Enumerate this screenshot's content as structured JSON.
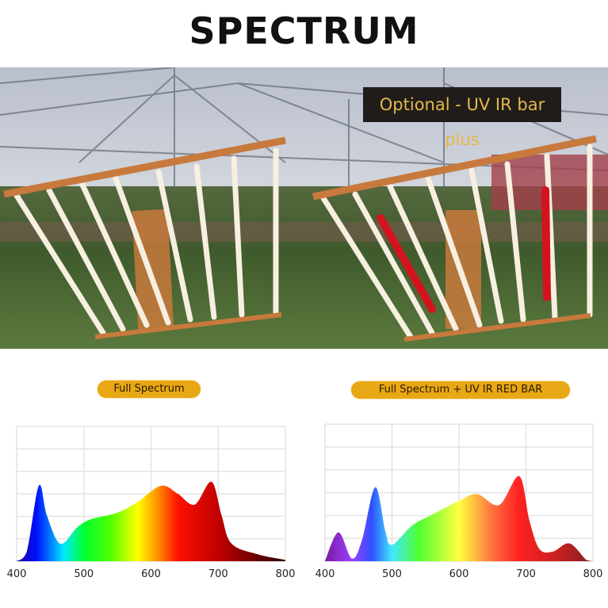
{
  "title": "SPECTRUM",
  "photo": {
    "callout": "Optional - UV IR bar plus",
    "accent_color": "#c8793c",
    "red_bar_color": "#d3141e"
  },
  "chart_data": [
    {
      "type": "area",
      "title": "Full Spectrum",
      "xlabel": "",
      "ylabel": "",
      "xlim": [
        400,
        800
      ],
      "ylim": [
        0,
        1
      ],
      "x_ticks": [
        "400",
        "500",
        "600",
        "700",
        "800"
      ],
      "grid": true,
      "fill": "wavelength-color gradient",
      "x": [
        400,
        415,
        433,
        445,
        465,
        490,
        510,
        550,
        580,
        615,
        640,
        665,
        690,
        705,
        720,
        760,
        800
      ],
      "y": [
        0,
        0.07,
        0.56,
        0.34,
        0.13,
        0.25,
        0.31,
        0.36,
        0.44,
        0.56,
        0.5,
        0.42,
        0.59,
        0.34,
        0.13,
        0.05,
        0.01
      ]
    },
    {
      "type": "area",
      "title": "Full Spectrum + UV IR RED BAR",
      "xlabel": "",
      "ylabel": "",
      "xlim": [
        400,
        800
      ],
      "ylim": [
        0,
        1
      ],
      "x_ticks": [
        "400",
        "500",
        "600",
        "700",
        "800"
      ],
      "grid": true,
      "fill": "wavelength-color gradient",
      "x": [
        400,
        420,
        440,
        455,
        475,
        490,
        500,
        530,
        560,
        600,
        627,
        660,
        690,
        705,
        720,
        740,
        765,
        790,
        800
      ],
      "y": [
        0,
        0.21,
        0.02,
        0.15,
        0.54,
        0.22,
        0.12,
        0.26,
        0.34,
        0.44,
        0.49,
        0.41,
        0.62,
        0.3,
        0.09,
        0.07,
        0.13,
        0.01,
        0
      ]
    }
  ]
}
